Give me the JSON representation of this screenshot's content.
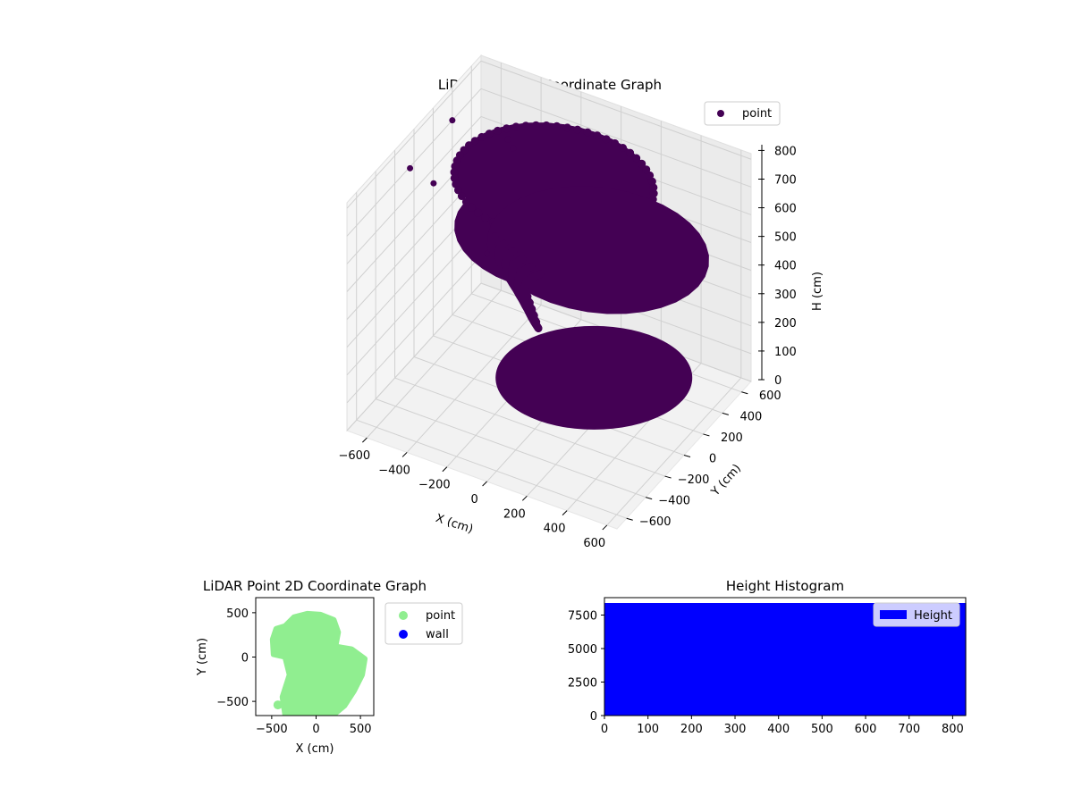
{
  "colors": {
    "point3d": "#440154",
    "point2d": "#90ee90",
    "wall": "#0000ff",
    "hist": "#0000ff",
    "pane": "#f2f2f2",
    "grid": "#d0d0d0"
  },
  "chart_data": [
    {
      "type": "scatter3d",
      "title": "LiDAR Point 3D Coordinate Graph",
      "xlabel": "X (cm)",
      "ylabel": "Y (cm)",
      "zlabel": "H (cm)",
      "xlim": [
        -700,
        650
      ],
      "ylim": [
        -700,
        700
      ],
      "zlim": [
        820,
        0
      ],
      "xticks": [
        -600,
        -400,
        -200,
        0,
        200,
        400,
        600
      ],
      "yticks": [
        -600,
        -400,
        -200,
        0,
        200,
        400,
        600
      ],
      "zticks": [
        0,
        100,
        200,
        300,
        400,
        500,
        600,
        700,
        800
      ],
      "legend": [
        "point"
      ],
      "legend_position": "upper right",
      "grid": true,
      "shapes": {
        "dome": {
          "center": [
            150,
            150
          ],
          "radius": 500,
          "h_range": [
            200,
            550
          ],
          "description": "dense spherical cap of points"
        },
        "ring": {
          "center": [
            0,
            0
          ],
          "radius": 450,
          "h_range": [
            620,
            820
          ],
          "description": "dense cylindrical band of points"
        },
        "arcs": {
          "h_range": [
            150,
            640
          ],
          "description": "curved streaks of points on the left side"
        }
      },
      "outliers": [
        {
          "x": -650,
          "y": 100,
          "h": 600
        },
        {
          "x": -700,
          "y": 400,
          "h": 700
        },
        {
          "x": -600,
          "y": -250,
          "h": 800
        },
        {
          "x": -350,
          "y": 250,
          "h": 780
        },
        {
          "x": -300,
          "y": 200,
          "h": 780
        },
        {
          "x": 0,
          "y": -700,
          "h": 820
        }
      ]
    },
    {
      "type": "scatter",
      "title": "LiDAR Point 2D Coordinate Graph",
      "xlabel": "X (cm)",
      "ylabel": "Y (cm)",
      "xlim": [
        -680,
        650
      ],
      "ylim": [
        -660,
        670
      ],
      "xticks": [
        -500,
        0,
        500
      ],
      "yticks": [
        -500,
        0,
        500
      ],
      "legend": [
        "point",
        "wall"
      ],
      "legend_position": "outside right",
      "region": [
        [
          -350,
          350
        ],
        [
          -250,
          450
        ],
        [
          -100,
          490
        ],
        [
          50,
          480
        ],
        [
          200,
          420
        ],
        [
          250,
          280
        ],
        [
          220,
          120
        ],
        [
          400,
          90
        ],
        [
          550,
          -20
        ],
        [
          520,
          -200
        ],
        [
          430,
          -380
        ],
        [
          320,
          -550
        ],
        [
          200,
          -650
        ],
        [
          -350,
          -650
        ],
        [
          -380,
          -450
        ],
        [
          -300,
          -200
        ],
        [
          -350,
          0
        ],
        [
          -480,
          30
        ],
        [
          -490,
          200
        ],
        [
          -450,
          320
        ]
      ],
      "outliers": [
        {
          "x": -430,
          "y": -540
        }
      ]
    },
    {
      "type": "bar",
      "title": "Height Histogram",
      "legend": [
        "Height"
      ],
      "legend_position": "upper right",
      "xlim": [
        0,
        830
      ],
      "ylim": [
        0,
        8800
      ],
      "xticks": [
        0,
        100,
        200,
        300,
        400,
        500,
        600,
        700,
        800
      ],
      "yticks": [
        0,
        2500,
        5000,
        7500
      ],
      "bins": {
        "start": 0,
        "end": 830,
        "step": 10,
        "value": 8400
      }
    }
  ]
}
